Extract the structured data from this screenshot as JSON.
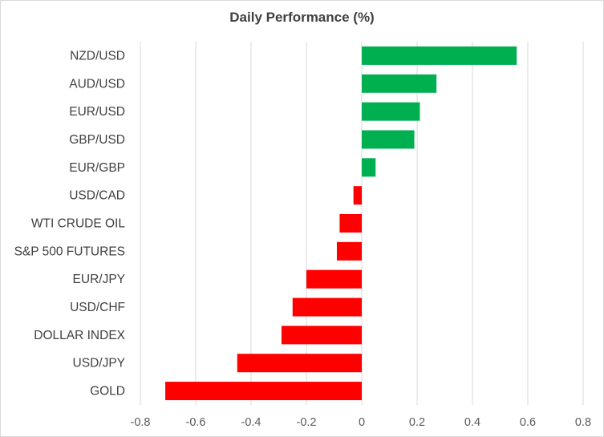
{
  "chart_data": {
    "type": "bar",
    "orientation": "horizontal",
    "title": "Daily Performance (%)",
    "xlabel": "",
    "ylabel": "",
    "categories": [
      "NZD/USD",
      "AUD/USD",
      "EUR/USD",
      "GBP/USD",
      "EUR/GBP",
      "USD/CAD",
      "WTI CRUDE OIL",
      "S&P 500 FUTURES",
      "EUR/JPY",
      "USD/CHF",
      "DOLLAR INDEX",
      "USD/JPY",
      "GOLD"
    ],
    "values": [
      0.56,
      0.27,
      0.21,
      0.19,
      0.05,
      -0.03,
      -0.08,
      -0.09,
      -0.2,
      -0.25,
      -0.29,
      -0.45,
      -0.71
    ],
    "xlim": [
      -0.8,
      0.8
    ],
    "xticks": [
      "-0.8",
      "-0.6",
      "-0.4",
      "-0.2",
      "0",
      "0.2",
      "0.4",
      "0.6",
      "0.8"
    ],
    "xtick_values": [
      -0.8,
      -0.6,
      -0.4,
      -0.2,
      0,
      0.2,
      0.4,
      0.6,
      0.8
    ],
    "grid": "vertical",
    "colors": {
      "positive": "#00b050",
      "negative": "#ff0000",
      "grid": "#d9d9d9",
      "text": "#404040"
    }
  }
}
